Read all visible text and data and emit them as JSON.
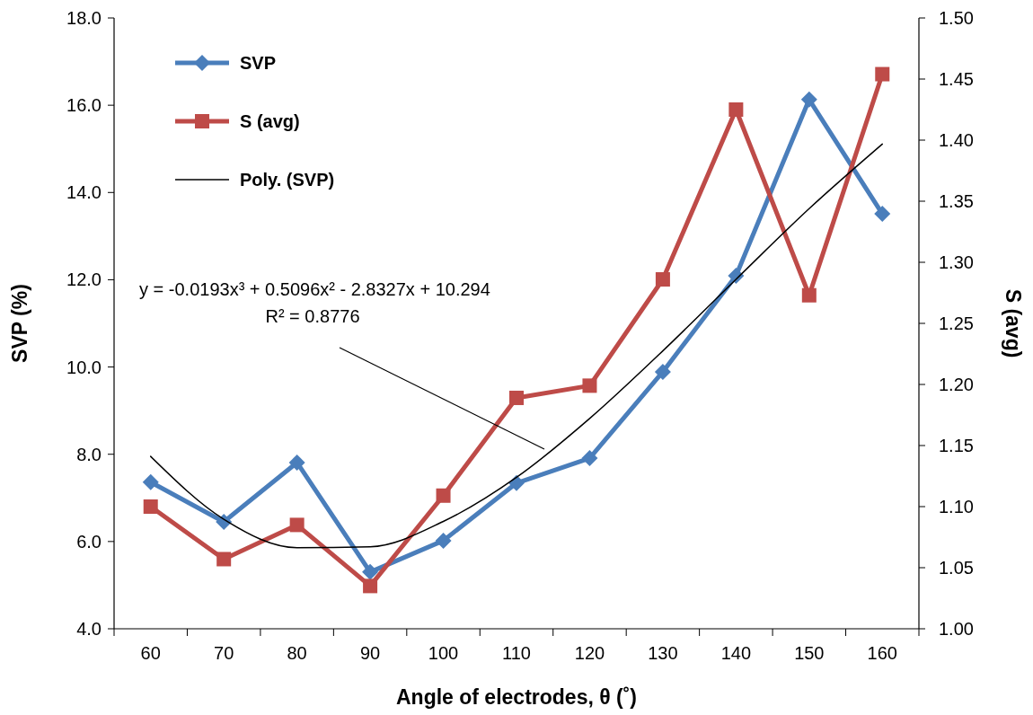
{
  "chart_data": {
    "type": "line",
    "xlabel": "Angle of electrodes, θ (˚)",
    "ylabel": "SVP (%)",
    "y2label": "S (avg)",
    "categories": [
      "60",
      "70",
      "80",
      "90",
      "100",
      "110",
      "120",
      "130",
      "140",
      "150",
      "160"
    ],
    "ylim": [
      4,
      18
    ],
    "yticks": [
      {
        "value": 4,
        "label": "4.0"
      },
      {
        "value": 6,
        "label": "6.0"
      },
      {
        "value": 8,
        "label": "8.0"
      },
      {
        "value": 10,
        "label": "10.0"
      },
      {
        "value": 12,
        "label": "12.0"
      },
      {
        "value": 14,
        "label": "14.0"
      },
      {
        "value": 16,
        "label": "16.0"
      },
      {
        "value": 18,
        "label": "18.0"
      }
    ],
    "y2lim": [
      1,
      1.5
    ],
    "y2ticks": [
      {
        "value": 1,
        "label": "1.00"
      },
      1.05,
      {
        "value": 1.1,
        "label": "1.10"
      },
      1.15,
      {
        "value": 1.2,
        "label": "1.20"
      },
      1.25,
      {
        "value": 1.3,
        "label": "1.30"
      },
      1.35,
      {
        "value": 1.4,
        "label": "1.40"
      },
      1.45,
      {
        "value": 1.5,
        "label": "1.50"
      }
    ],
    "series": [
      {
        "name": "SVP",
        "color": "#4a7ebb",
        "marker": "diamond",
        "values": [
          7.36,
          6.45,
          7.81,
          5.3,
          6.02,
          7.34,
          7.91,
          9.89,
          12.09,
          16.13,
          13.51
        ]
      },
      {
        "name": "S (avg)",
        "color": "#be4b48",
        "marker": "square",
        "axis": "y2",
        "values": [
          1.1,
          1.057,
          1.085,
          1.035,
          1.109,
          1.189,
          1.199,
          1.286,
          1.425,
          1.273,
          1.454
        ]
      },
      {
        "name": "Poly. (SVP)",
        "color": "#000000",
        "marker": "none",
        "values": [
          7.95,
          6.51,
          5.86,
          5.88,
          6.46,
          7.47,
          8.82,
          10.37,
          12.01,
          13.63,
          15.11
        ]
      }
    ],
    "annotations": [
      "y = -0.0193x³ + 0.5096x² - 2.8327x + 10.294",
      "R² = 0.8776"
    ],
    "legend": "top left",
    "grid": false
  }
}
